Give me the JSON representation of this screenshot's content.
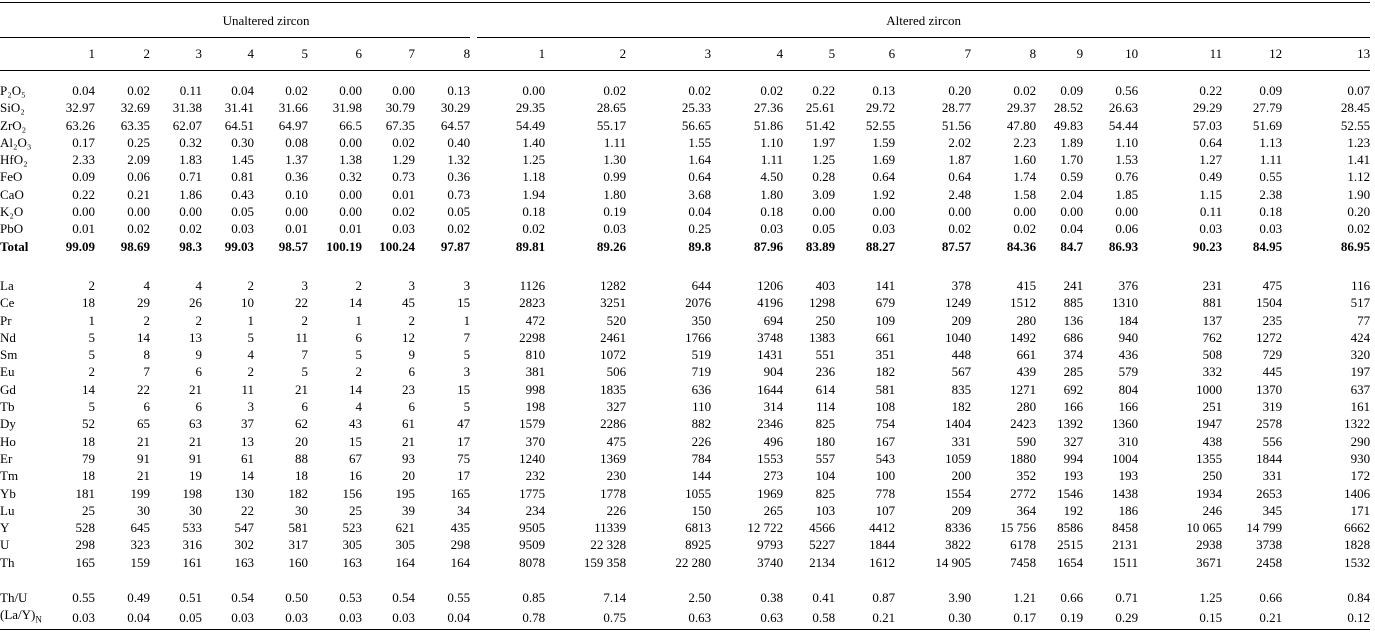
{
  "table": {
    "group_headers": [
      "Unaltered zircon",
      "Altered zircon"
    ],
    "unaltered_columns": [
      "1",
      "2",
      "3",
      "4",
      "5",
      "6",
      "7",
      "8"
    ],
    "altered_columns": [
      "1",
      "2",
      "3",
      "4",
      "5",
      "6",
      "7",
      "8",
      "9",
      "10",
      "11",
      "12",
      "13"
    ],
    "sections": [
      {
        "rows": [
          {
            "label": "P₂O₅",
            "values": [
              "0.04",
              "0.02",
              "0.11",
              "0.04",
              "0.02",
              "0.00",
              "0.00",
              "0.13",
              "0.00",
              "0.02",
              "0.02",
              "0.02",
              "0.22",
              "0.13",
              "0.20",
              "0.02",
              "0.09",
              "0.56",
              "0.22",
              "0.09",
              "0.07"
            ]
          },
          {
            "label": "SiO₂",
            "values": [
              "32.97",
              "32.69",
              "31.38",
              "31.41",
              "31.66",
              "31.98",
              "30.79",
              "30.29",
              "29.35",
              "28.65",
              "25.33",
              "27.36",
              "25.61",
              "29.72",
              "28.77",
              "29.37",
              "28.52",
              "26.63",
              "29.29",
              "27.79",
              "28.45"
            ]
          },
          {
            "label": "ZrO₂",
            "values": [
              "63.26",
              "63.35",
              "62.07",
              "64.51",
              "64.97",
              "66.5",
              "67.35",
              "64.57",
              "54.49",
              "55.17",
              "56.65",
              "51.86",
              "51.42",
              "52.55",
              "51.56",
              "47.80",
              "49.83",
              "54.44",
              "57.03",
              "51.69",
              "52.55"
            ]
          },
          {
            "label": "Al₂O₃",
            "values": [
              "0.17",
              "0.25",
              "0.32",
              "0.30",
              "0.08",
              "0.00",
              "0.02",
              "0.40",
              "1.40",
              "1.11",
              "1.55",
              "1.10",
              "1.97",
              "1.59",
              "2.02",
              "2.23",
              "1.89",
              "1.10",
              "0.64",
              "1.13",
              "1.23"
            ]
          },
          {
            "label": "HfO₂",
            "values": [
              "2.33",
              "2.09",
              "1.83",
              "1.45",
              "1.37",
              "1.38",
              "1.29",
              "1.32",
              "1.25",
              "1.30",
              "1.64",
              "1.11",
              "1.25",
              "1.69",
              "1.87",
              "1.60",
              "1.70",
              "1.53",
              "1.27",
              "1.11",
              "1.41"
            ]
          },
          {
            "label": "FeO",
            "values": [
              "0.09",
              "0.06",
              "0.71",
              "0.81",
              "0.36",
              "0.32",
              "0.73",
              "0.36",
              "1.18",
              "0.99",
              "0.64",
              "4.50",
              "0.28",
              "0.64",
              "0.64",
              "1.74",
              "0.59",
              "0.76",
              "0.49",
              "0.55",
              "1.12"
            ]
          },
          {
            "label": "CaO",
            "values": [
              "0.22",
              "0.21",
              "1.86",
              "0.43",
              "0.10",
              "0.00",
              "0.01",
              "0.73",
              "1.94",
              "1.80",
              "3.68",
              "1.80",
              "3.09",
              "1.92",
              "2.48",
              "1.58",
              "2.04",
              "1.85",
              "1.15",
              "2.38",
              "1.90"
            ]
          },
          {
            "label": "K₂O",
            "values": [
              "0.00",
              "0.00",
              "0.00",
              "0.05",
              "0.00",
              "0.00",
              "0.02",
              "0.05",
              "0.18",
              "0.19",
              "0.04",
              "0.18",
              "0.00",
              "0.00",
              "0.00",
              "0.00",
              "0.00",
              "0.00",
              "0.11",
              "0.18",
              "0.20"
            ]
          },
          {
            "label": "PbO",
            "values": [
              "0.01",
              "0.02",
              "0.02",
              "0.03",
              "0.01",
              "0.01",
              "0.03",
              "0.02",
              "0.02",
              "0.03",
              "0.25",
              "0.03",
              "0.05",
              "0.03",
              "0.02",
              "0.02",
              "0.04",
              "0.06",
              "0.03",
              "0.03",
              "0.02"
            ]
          },
          {
            "label": "Total",
            "bold": true,
            "values": [
              "99.09",
              "98.69",
              "98.3",
              "99.03",
              "98.57",
              "100.19",
              "100.24",
              "97.87",
              "89.81",
              "89.26",
              "89.8",
              "87.96",
              "83.89",
              "88.27",
              "87.57",
              "84.36",
              "84.7",
              "86.93",
              "90.23",
              "84.95",
              "86.95"
            ]
          }
        ]
      },
      {
        "rows": [
          {
            "label": "La",
            "values": [
              "2",
              "4",
              "4",
              "2",
              "3",
              "2",
              "3",
              "3",
              "1126",
              "1282",
              "644",
              "1206",
              "403",
              "141",
              "378",
              "415",
              "241",
              "376",
              "231",
              "475",
              "116"
            ]
          },
          {
            "label": "Ce",
            "values": [
              "18",
              "29",
              "26",
              "10",
              "22",
              "14",
              "45",
              "15",
              "2823",
              "3251",
              "2076",
              "4196",
              "1298",
              "679",
              "1249",
              "1512",
              "885",
              "1310",
              "881",
              "1504",
              "517"
            ]
          },
          {
            "label": "Pr",
            "values": [
              "1",
              "2",
              "2",
              "1",
              "2",
              "1",
              "2",
              "1",
              "472",
              "520",
              "350",
              "694",
              "250",
              "109",
              "209",
              "280",
              "136",
              "184",
              "137",
              "235",
              "77"
            ]
          },
          {
            "label": "Nd",
            "values": [
              "5",
              "14",
              "13",
              "5",
              "11",
              "6",
              "12",
              "7",
              "2298",
              "2461",
              "1766",
              "3748",
              "1383",
              "661",
              "1040",
              "1492",
              "686",
              "940",
              "762",
              "1272",
              "424"
            ]
          },
          {
            "label": "Sm",
            "values": [
              "5",
              "8",
              "9",
              "4",
              "7",
              "5",
              "9",
              "5",
              "810",
              "1072",
              "519",
              "1431",
              "551",
              "351",
              "448",
              "661",
              "374",
              "436",
              "508",
              "729",
              "320"
            ]
          },
          {
            "label": "Eu",
            "values": [
              "2",
              "7",
              "6",
              "2",
              "5",
              "2",
              "6",
              "3",
              "381",
              "506",
              "719",
              "904",
              "236",
              "182",
              "567",
              "439",
              "285",
              "579",
              "332",
              "445",
              "197"
            ]
          },
          {
            "label": "Gd",
            "values": [
              "14",
              "22",
              "21",
              "11",
              "21",
              "14",
              "23",
              "15",
              "998",
              "1835",
              "636",
              "1644",
              "614",
              "581",
              "835",
              "1271",
              "692",
              "804",
              "1000",
              "1370",
              "637"
            ]
          },
          {
            "label": "Tb",
            "values": [
              "5",
              "6",
              "6",
              "3",
              "6",
              "4",
              "6",
              "5",
              "198",
              "327",
              "110",
              "314",
              "114",
              "108",
              "182",
              "280",
              "166",
              "166",
              "251",
              "319",
              "161"
            ]
          },
          {
            "label": "Dy",
            "values": [
              "52",
              "65",
              "63",
              "37",
              "62",
              "43",
              "61",
              "47",
              "1579",
              "2286",
              "882",
              "2346",
              "825",
              "754",
              "1404",
              "2423",
              "1392",
              "1360",
              "1947",
              "2578",
              "1322"
            ]
          },
          {
            "label": "Ho",
            "values": [
              "18",
              "21",
              "21",
              "13",
              "20",
              "15",
              "21",
              "17",
              "370",
              "475",
              "226",
              "496",
              "180",
              "167",
              "331",
              "590",
              "327",
              "310",
              "438",
              "556",
              "290"
            ]
          },
          {
            "label": "Er",
            "values": [
              "79",
              "91",
              "91",
              "61",
              "88",
              "67",
              "93",
              "75",
              "1240",
              "1369",
              "784",
              "1553",
              "557",
              "543",
              "1059",
              "1880",
              "994",
              "1004",
              "1355",
              "1844",
              "930"
            ]
          },
          {
            "label": "Tm",
            "values": [
              "18",
              "21",
              "19",
              "14",
              "18",
              "16",
              "20",
              "17",
              "232",
              "230",
              "144",
              "273",
              "104",
              "100",
              "200",
              "352",
              "193",
              "193",
              "250",
              "331",
              "172"
            ]
          },
          {
            "label": "Yb",
            "values": [
              "181",
              "199",
              "198",
              "130",
              "182",
              "156",
              "195",
              "165",
              "1775",
              "1778",
              "1055",
              "1969",
              "825",
              "778",
              "1554",
              "2772",
              "1546",
              "1438",
              "1934",
              "2653",
              "1406"
            ]
          },
          {
            "label": "Lu",
            "values": [
              "25",
              "30",
              "30",
              "22",
              "30",
              "25",
              "39",
              "34",
              "234",
              "226",
              "150",
              "265",
              "103",
              "107",
              "209",
              "364",
              "192",
              "186",
              "246",
              "345",
              "171"
            ]
          },
          {
            "label": "Y",
            "values": [
              "528",
              "645",
              "533",
              "547",
              "581",
              "523",
              "621",
              "435",
              "9505",
              "11339",
              "6813",
              "12 722",
              "4566",
              "4412",
              "8336",
              "15 756",
              "8586",
              "8458",
              "10 065",
              "14 799",
              "6662"
            ]
          },
          {
            "label": "U",
            "values": [
              "298",
              "323",
              "316",
              "302",
              "317",
              "305",
              "305",
              "298",
              "9509",
              "22 328",
              "8925",
              "9793",
              "5227",
              "1844",
              "3822",
              "6178",
              "2515",
              "2131",
              "2938",
              "3738",
              "1828"
            ]
          },
          {
            "label": "Th",
            "values": [
              "165",
              "159",
              "161",
              "163",
              "160",
              "163",
              "164",
              "164",
              "8078",
              "159 358",
              "22 280",
              "3740",
              "2134",
              "1612",
              "14 905",
              "7458",
              "1654",
              "1511",
              "3671",
              "2458",
              "1532"
            ]
          }
        ]
      },
      {
        "rows": [
          {
            "label": "Th/U",
            "values": [
              "0.55",
              "0.49",
              "0.51",
              "0.54",
              "0.50",
              "0.53",
              "0.54",
              "0.55",
              "0.85",
              "7.14",
              "2.50",
              "0.38",
              "0.41",
              "0.87",
              "3.90",
              "1.21",
              "0.66",
              "0.71",
              "1.25",
              "0.66",
              "0.84"
            ]
          },
          {
            "label": "(La/Y)",
            "label_sub": "N",
            "values": [
              "0.03",
              "0.04",
              "0.05",
              "0.03",
              "0.03",
              "0.03",
              "0.03",
              "0.04",
              "0.78",
              "0.75",
              "0.63",
              "0.63",
              "0.58",
              "0.21",
              "0.30",
              "0.17",
              "0.19",
              "0.29",
              "0.15",
              "0.21",
              "0.12"
            ]
          }
        ]
      }
    ]
  }
}
